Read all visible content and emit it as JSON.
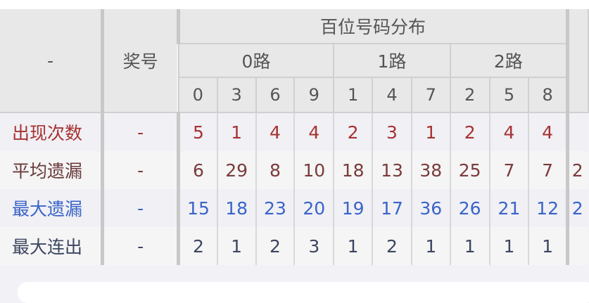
{
  "header": {
    "corner": "-",
    "prize_col": "奖号",
    "group_title": "百位号码分布",
    "routes": [
      {
        "label": "0路",
        "digits": [
          "0",
          "3",
          "6",
          "9"
        ]
      },
      {
        "label": "1路",
        "digits": [
          "1",
          "4",
          "7"
        ]
      },
      {
        "label": "2路",
        "digits": [
          "2",
          "5",
          "8"
        ]
      }
    ]
  },
  "rows": [
    {
      "label": "出现次数",
      "prize": "-",
      "values": [
        "5",
        "1",
        "4",
        "4",
        "2",
        "3",
        "1",
        "2",
        "4",
        "4"
      ],
      "color": "#a83232"
    },
    {
      "label": "平均遗漏",
      "prize": "-",
      "values": [
        "6",
        "29",
        "8",
        "10",
        "18",
        "13",
        "38",
        "25",
        "7",
        "7"
      ],
      "color": "#7a3b3b",
      "overflow": "2"
    },
    {
      "label": "最大遗漏",
      "prize": "-",
      "values": [
        "15",
        "18",
        "23",
        "20",
        "19",
        "17",
        "36",
        "26",
        "21",
        "12"
      ],
      "color": "#3a64c8",
      "overflow": "2"
    },
    {
      "label": "最大连出",
      "prize": "-",
      "values": [
        "2",
        "1",
        "2",
        "3",
        "1",
        "2",
        "1",
        "1",
        "1",
        "1"
      ],
      "color": "#3c4660"
    }
  ]
}
